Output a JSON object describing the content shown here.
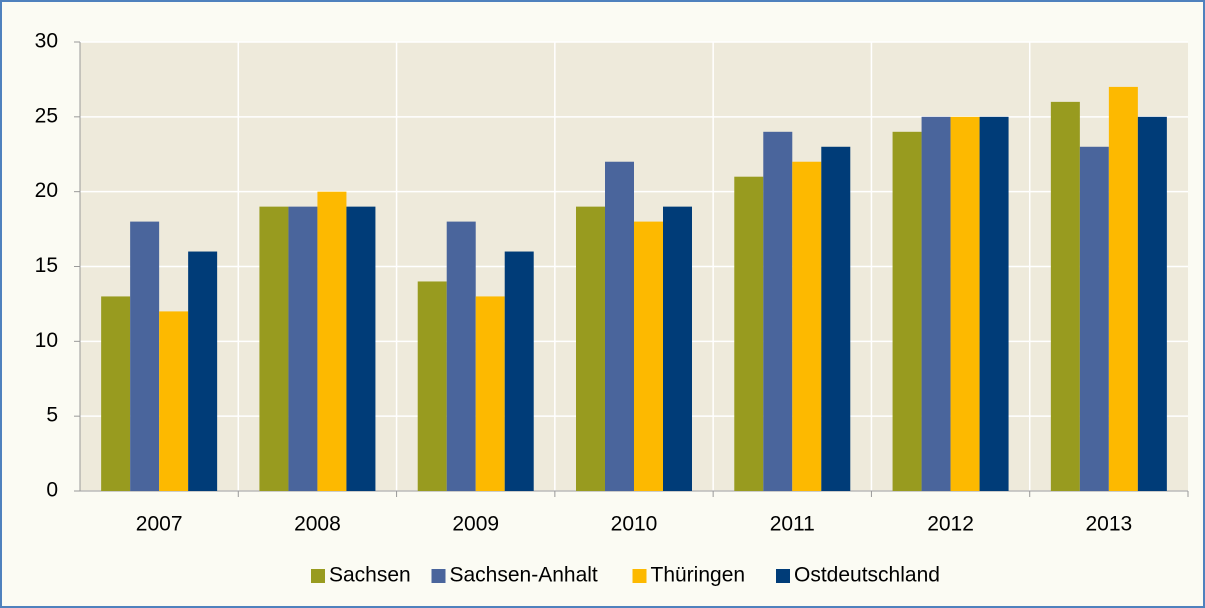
{
  "chart_data": {
    "type": "bar",
    "categories": [
      "2007",
      "2008",
      "2009",
      "2010",
      "2011",
      "2012",
      "2013"
    ],
    "series": [
      {
        "name": "Sachsen",
        "color": "#989b1f",
        "values": [
          13,
          19,
          14,
          19,
          21,
          24,
          26
        ]
      },
      {
        "name": "Sachsen-Anhalt",
        "color": "#4a659c",
        "values": [
          18,
          19,
          18,
          22,
          24,
          25,
          23
        ]
      },
      {
        "name": "Thüringen",
        "color": "#fdb900",
        "values": [
          12,
          20,
          13,
          18,
          22,
          25,
          27
        ]
      },
      {
        "name": "Ostdeutschland",
        "color": "#003c78",
        "values": [
          16,
          19,
          16,
          19,
          23,
          25,
          25
        ]
      }
    ],
    "ylim": [
      0,
      30
    ],
    "yticks": [
      0,
      5,
      10,
      15,
      20,
      25,
      30
    ],
    "grid": true,
    "legend": "bottom"
  }
}
